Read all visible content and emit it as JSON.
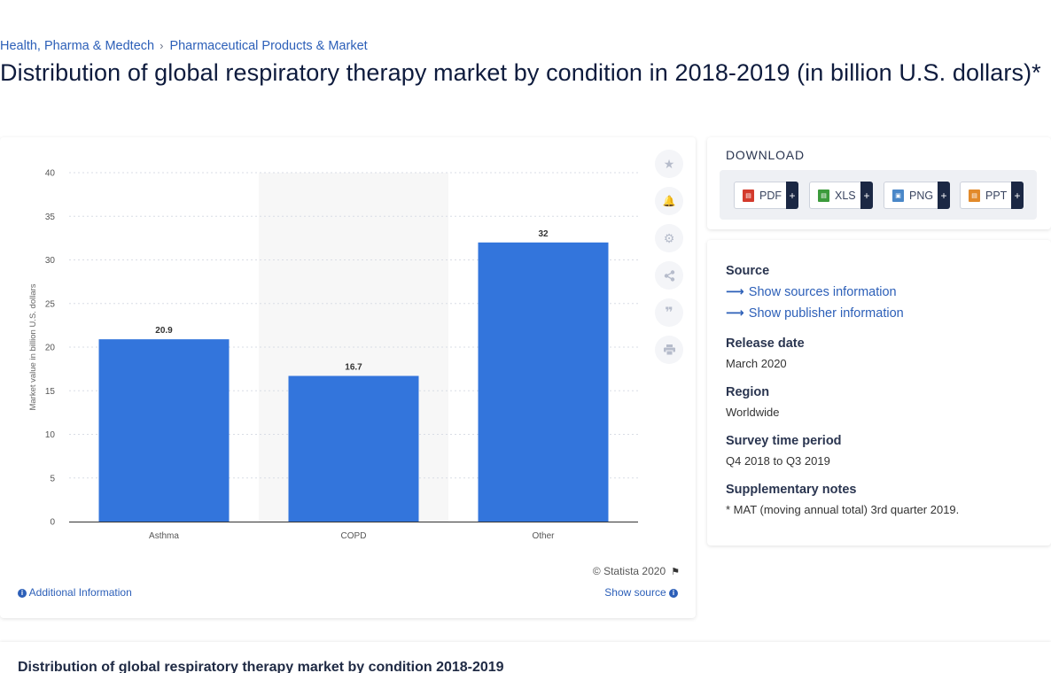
{
  "breadcrumb": {
    "item1": "Health, Pharma & Medtech",
    "separator": "›",
    "item2": "Pharmaceutical Products & Market"
  },
  "page_title": "Distribution of global respiratory therapy market by condition in 2018-2019 (in billion U.S. dollars)*",
  "chart_data": {
    "type": "bar",
    "categories": [
      "Asthma",
      "COPD",
      "Other"
    ],
    "values": [
      20.9,
      16.7,
      32
    ],
    "data_labels": [
      "20.9",
      "16.7",
      "32"
    ],
    "title": "",
    "xlabel": "",
    "ylabel": "Market value in billion U.S. dollars",
    "ylim": [
      0,
      40
    ],
    "yticks": [
      0,
      5,
      10,
      15,
      20,
      25,
      30,
      35,
      40
    ],
    "grid": true,
    "bar_color": "#3375dc",
    "highlight_band_category": "COPD"
  },
  "chart_footer": {
    "copyright": "© Statista 2020",
    "additional_info": "Additional Information",
    "show_source": "Show source"
  },
  "tools": [
    {
      "name": "star-icon",
      "glyph": "★"
    },
    {
      "name": "bell-icon",
      "glyph": "🔔"
    },
    {
      "name": "gear-icon",
      "glyph": "⚙"
    },
    {
      "name": "share-icon",
      "glyph": "⋖"
    },
    {
      "name": "quote-icon",
      "glyph": "❝"
    },
    {
      "name": "print-icon",
      "glyph": "⎙"
    }
  ],
  "download": {
    "title": "DOWNLOAD",
    "pdf": "PDF",
    "xls": "XLS",
    "png": "PNG",
    "ppt": "PPT",
    "plus": "+"
  },
  "info": {
    "source_heading": "Source",
    "show_sources": "Show sources information",
    "show_publisher": "Show publisher information",
    "release_heading": "Release date",
    "release_value": "March 2020",
    "region_heading": "Region",
    "region_value": "Worldwide",
    "period_heading": "Survey time period",
    "period_value": "Q4 2018 to Q3 2019",
    "notes_heading": "Supplementary notes",
    "notes_value": "* MAT (moving annual total) 3rd quarter 2019."
  },
  "bottom_title": "Distribution of global respiratory therapy market by condition 2018-2019",
  "colors": {
    "link": "#2c5fb8",
    "bar": "#3375dc",
    "dark": "#1b2844"
  }
}
